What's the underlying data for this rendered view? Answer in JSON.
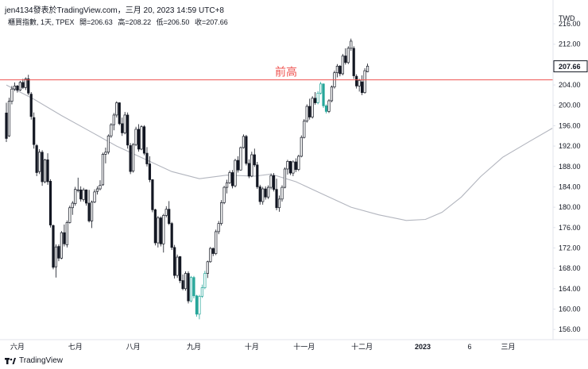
{
  "header": {
    "author_line": "jen4134發表於TradingView.com，三月 20, 2023 14:59 UTC+8",
    "symbol": "櫃買指數, 1天, TPEX",
    "open": "開=206.63",
    "high": "高=208.22",
    "low": "低=206.50",
    "close": "收=207.66"
  },
  "footer": {
    "brand": "TradingView",
    "logo_icon": "tradingview-logo-icon"
  },
  "colors": {
    "up": "#ffffff",
    "down": "#131722",
    "outline": "#131722",
    "green": "#26a69a",
    "ma": "#b2b5be",
    "level": "#ef5350",
    "grid": "#e0e3eb",
    "current_price_bg": "#ffffff"
  },
  "chart_data": {
    "type": "candlestick",
    "currency": "TWD",
    "y_ticks": [
      156,
      160,
      164,
      168,
      172,
      176,
      180,
      184,
      188,
      192,
      196,
      200,
      204,
      208,
      212,
      216
    ],
    "y_tick_labels": [
      "156.00",
      "160.00",
      "164.00",
      "168.00",
      "172.00",
      "176.00",
      "180.00",
      "184.00",
      "188.00",
      "192.00",
      "196.00",
      "200.00",
      "204.00",
      "208.00",
      "212.00",
      "216.00"
    ],
    "ylim": [
      154,
      218.5
    ],
    "x_labels": [
      {
        "label": "六月",
        "index": 4
      },
      {
        "label": "七月",
        "index": 25
      },
      {
        "label": "八月",
        "index": 46
      },
      {
        "label": "九月",
        "index": 68
      },
      {
        "label": "十月",
        "index": 89
      },
      {
        "label": "十一月",
        "index": 108
      },
      {
        "label": "十二月",
        "index": 129
      },
      {
        "label": "2023",
        "index": 151
      },
      {
        "label": "6",
        "index": 168
      },
      {
        "label": "三月",
        "index": 182
      }
    ],
    "current_price": 207.66,
    "current_price_label": "207.66",
    "annotation": {
      "text": "前高",
      "level": 205.0
    },
    "ohlc": [
      [
        198.5,
        200.5,
        192.8,
        193.5
      ],
      [
        194.0,
        201.5,
        193.8,
        200.8
      ],
      [
        200.8,
        203.8,
        200.2,
        203.2
      ],
      [
        203.2,
        204.5,
        202.8,
        203.8
      ],
      [
        203.8,
        204.0,
        202.5,
        203.0
      ],
      [
        203.0,
        204.8,
        202.8,
        204.5
      ],
      [
        204.5,
        205.2,
        203.2,
        203.5
      ],
      [
        203.5,
        205.5,
        203.0,
        205.2
      ],
      [
        205.2,
        206.0,
        202.0,
        202.4
      ],
      [
        202.2,
        202.6,
        197.2,
        197.8
      ],
      [
        197.6,
        198.6,
        191.5,
        192.3
      ],
      [
        192.1,
        192.4,
        186.1,
        186.8
      ],
      [
        187.0,
        191.4,
        186.5,
        190.8
      ],
      [
        190.8,
        191.2,
        184.2,
        185.0
      ],
      [
        185.0,
        189.5,
        184.7,
        189.3
      ],
      [
        189.3,
        190.6,
        184.4,
        185.0
      ],
      [
        185.1,
        185.5,
        176.0,
        176.5
      ],
      [
        176.4,
        176.6,
        167.8,
        168.2
      ],
      [
        168.3,
        172.7,
        166.2,
        172.2
      ],
      [
        172.3,
        172.7,
        169.4,
        170.0
      ],
      [
        170.0,
        175.3,
        169.8,
        175.0
      ],
      [
        175.0,
        176.6,
        172.3,
        172.8
      ],
      [
        172.6,
        177.4,
        172.1,
        177.0
      ],
      [
        177.0,
        180.3,
        176.8,
        179.9
      ],
      [
        179.9,
        181.2,
        178.5,
        180.8
      ],
      [
        180.7,
        184.0,
        180.3,
        183.5
      ],
      [
        183.4,
        185.8,
        182.9,
        183.4
      ],
      [
        183.4,
        184.1,
        181.1,
        181.6
      ],
      [
        181.5,
        183.8,
        181.1,
        183.4
      ],
      [
        183.4,
        183.5,
        180.3,
        180.8
      ],
      [
        180.8,
        183.4,
        177.0,
        177.3
      ],
      [
        177.3,
        181.3,
        175.9,
        181.0
      ],
      [
        181.0,
        183.5,
        180.8,
        183.0
      ],
      [
        183.1,
        184.1,
        182.5,
        183.6
      ],
      [
        183.6,
        185.3,
        183.3,
        184.3
      ],
      [
        184.4,
        190.7,
        184.2,
        190.4
      ],
      [
        190.4,
        191.7,
        188.6,
        190.8
      ],
      [
        190.8,
        194.3,
        190.4,
        194.0
      ],
      [
        194.0,
        196.5,
        193.6,
        196.2
      ],
      [
        196.2,
        198.5,
        195.1,
        198.1
      ],
      [
        198.1,
        200.8,
        197.6,
        200.5
      ],
      [
        200.5,
        200.6,
        196.1,
        196.4
      ],
      [
        196.4,
        197.6,
        194.0,
        194.6
      ],
      [
        194.6,
        198.7,
        194.3,
        198.1
      ],
      [
        198.1,
        198.6,
        191.5,
        192.2
      ],
      [
        192.1,
        192.6,
        186.5,
        187.0
      ],
      [
        187.1,
        192.6,
        186.8,
        192.3
      ],
      [
        192.3,
        195.8,
        192.0,
        195.3
      ],
      [
        195.3,
        196.3,
        190.9,
        191.4
      ],
      [
        191.4,
        196.1,
        191.2,
        195.8
      ],
      [
        195.8,
        196.1,
        190.2,
        190.6
      ],
      [
        190.6,
        191.8,
        188.0,
        188.5
      ],
      [
        188.5,
        190.0,
        184.9,
        185.4
      ],
      [
        185.4,
        185.5,
        179.0,
        179.5
      ],
      [
        179.5,
        179.7,
        172.5,
        173.0
      ],
      [
        173.0,
        178.3,
        172.1,
        177.9
      ],
      [
        177.9,
        178.2,
        172.3,
        172.8
      ],
      [
        172.8,
        178.7,
        171.1,
        178.4
      ],
      [
        178.4,
        180.2,
        178.0,
        179.6
      ],
      [
        179.6,
        181.2,
        176.5,
        176.8
      ],
      [
        176.8,
        177.1,
        171.6,
        172.1
      ],
      [
        172.1,
        172.6,
        166.0,
        166.6
      ],
      [
        166.6,
        170.7,
        166.1,
        170.2
      ],
      [
        170.3,
        170.4,
        165.1,
        165.6
      ],
      [
        165.6,
        166.8,
        163.7,
        164.0
      ],
      [
        164.0,
        167.4,
        163.6,
        167.0
      ],
      [
        167.0,
        167.4,
        161.1,
        161.6
      ],
      [
        161.6,
        166.5,
        161.3,
        166.2
      ],
      [
        166.2,
        166.5,
        162.1,
        162.6
      ],
      [
        162.6,
        162.8,
        158.5,
        159.0
      ],
      [
        159.0,
        162.8,
        158.0,
        162.5
      ],
      [
        162.5,
        164.8,
        162.2,
        164.2
      ],
      [
        164.2,
        167.5,
        163.9,
        167.0
      ],
      [
        167.0,
        169.5,
        166.1,
        169.3
      ],
      [
        169.3,
        172.2,
        169.1,
        171.9
      ],
      [
        171.9,
        172.1,
        170.4,
        170.9
      ],
      [
        170.9,
        175.6,
        170.6,
        175.2
      ],
      [
        175.2,
        177.3,
        174.7,
        176.8
      ],
      [
        176.8,
        181.4,
        176.4,
        180.9
      ],
      [
        180.9,
        184.2,
        180.6,
        183.9
      ],
      [
        183.9,
        185.4,
        182.7,
        184.8
      ],
      [
        184.8,
        187.2,
        184.6,
        186.8
      ],
      [
        186.8,
        187.3,
        183.7,
        184.2
      ],
      [
        184.2,
        189.5,
        183.9,
        189.2
      ],
      [
        189.2,
        190.0,
        186.8,
        187.3
      ],
      [
        187.3,
        191.9,
        187.2,
        191.7
      ],
      [
        191.7,
        194.3,
        191.5,
        193.9
      ],
      [
        193.9,
        194.2,
        188.2,
        188.6
      ],
      [
        188.6,
        189.4,
        185.7,
        186.1
      ],
      [
        186.1,
        190.9,
        185.9,
        190.3
      ],
      [
        190.3,
        191.5,
        187.9,
        188.3
      ],
      [
        188.3,
        188.9,
        183.6,
        184.0
      ],
      [
        184.0,
        184.4,
        180.5,
        181.1
      ],
      [
        181.1,
        184.0,
        180.5,
        183.6
      ],
      [
        183.6,
        184.1,
        181.5,
        182.0
      ],
      [
        182.0,
        184.3,
        181.6,
        183.9
      ],
      [
        183.9,
        186.6,
        183.5,
        186.2
      ],
      [
        186.2,
        186.7,
        183.1,
        183.5
      ],
      [
        183.5,
        185.6,
        179.4,
        179.9
      ],
      [
        179.9,
        182.3,
        179.1,
        181.6
      ],
      [
        181.6,
        184.3,
        181.1,
        183.9
      ],
      [
        183.9,
        187.8,
        183.7,
        187.5
      ],
      [
        187.5,
        189.3,
        186.4,
        189.0
      ],
      [
        189.0,
        189.1,
        186.3,
        186.7
      ],
      [
        186.7,
        189.2,
        186.1,
        188.9
      ],
      [
        188.9,
        189.6,
        186.9,
        187.4
      ],
      [
        187.4,
        190.3,
        187.1,
        190.0
      ],
      [
        190.0,
        194.1,
        189.8,
        193.7
      ],
      [
        193.7,
        197.3,
        193.5,
        196.9
      ],
      [
        196.9,
        200.2,
        196.6,
        199.8
      ],
      [
        199.8,
        201.3,
        197.2,
        197.7
      ],
      [
        197.7,
        201.8,
        197.4,
        201.4
      ],
      [
        201.4,
        202.6,
        200.1,
        200.5
      ],
      [
        200.5,
        202.8,
        200.2,
        202.4
      ],
      [
        202.4,
        204.6,
        202.1,
        204.2
      ],
      [
        204.2,
        204.3,
        199.5,
        199.9
      ],
      [
        199.9,
        200.2,
        198.4,
        198.8
      ],
      [
        198.8,
        201.2,
        198.5,
        200.9
      ],
      [
        200.9,
        203.9,
        200.6,
        203.6
      ],
      [
        203.6,
        206.8,
        203.3,
        206.4
      ],
      [
        206.4,
        208.1,
        205.5,
        207.7
      ],
      [
        207.7,
        207.9,
        205.7,
        206.2
      ],
      [
        206.2,
        210.1,
        205.9,
        209.7
      ],
      [
        209.7,
        211.2,
        208.0,
        208.4
      ],
      [
        208.4,
        211.6,
        208.1,
        211.2
      ],
      [
        211.2,
        213.1,
        210.7,
        212.6
      ],
      [
        211.2,
        211.6,
        205.2,
        205.8
      ],
      [
        205.7,
        206.1,
        203.3,
        203.8
      ],
      [
        203.8,
        205.2,
        202.7,
        204.9
      ],
      [
        204.6,
        205.9,
        202.0,
        202.5
      ],
      [
        202.5,
        207.3,
        202.3,
        206.8
      ],
      [
        206.6,
        208.2,
        206.5,
        207.7
      ]
    ],
    "ma": [
      {
        "index": 0,
        "value": 204.0
      },
      {
        "index": 10,
        "value": 201.2
      },
      {
        "index": 20,
        "value": 198.0
      },
      {
        "index": 30,
        "value": 195.0
      },
      {
        "index": 40,
        "value": 192.0
      },
      {
        "index": 50,
        "value": 189.5
      },
      {
        "index": 60,
        "value": 187.0
      },
      {
        "index": 70,
        "value": 185.6
      },
      {
        "index": 80,
        "value": 186.3
      },
      {
        "index": 90,
        "value": 186.1
      },
      {
        "index": 96,
        "value": 186.5
      },
      {
        "index": 105,
        "value": 185.0
      },
      {
        "index": 115,
        "value": 182.5
      },
      {
        "index": 125,
        "value": 180.0
      },
      {
        "index": 135,
        "value": 178.5
      },
      {
        "index": 145,
        "value": 177.4
      },
      {
        "index": 152,
        "value": 177.6
      },
      {
        "index": 158,
        "value": 179.0
      },
      {
        "index": 165,
        "value": 182.0
      },
      {
        "index": 172,
        "value": 186.0
      },
      {
        "index": 180,
        "value": 189.8
      },
      {
        "index": 190,
        "value": 193.0
      },
      {
        "index": 198,
        "value": 195.5
      }
    ]
  }
}
